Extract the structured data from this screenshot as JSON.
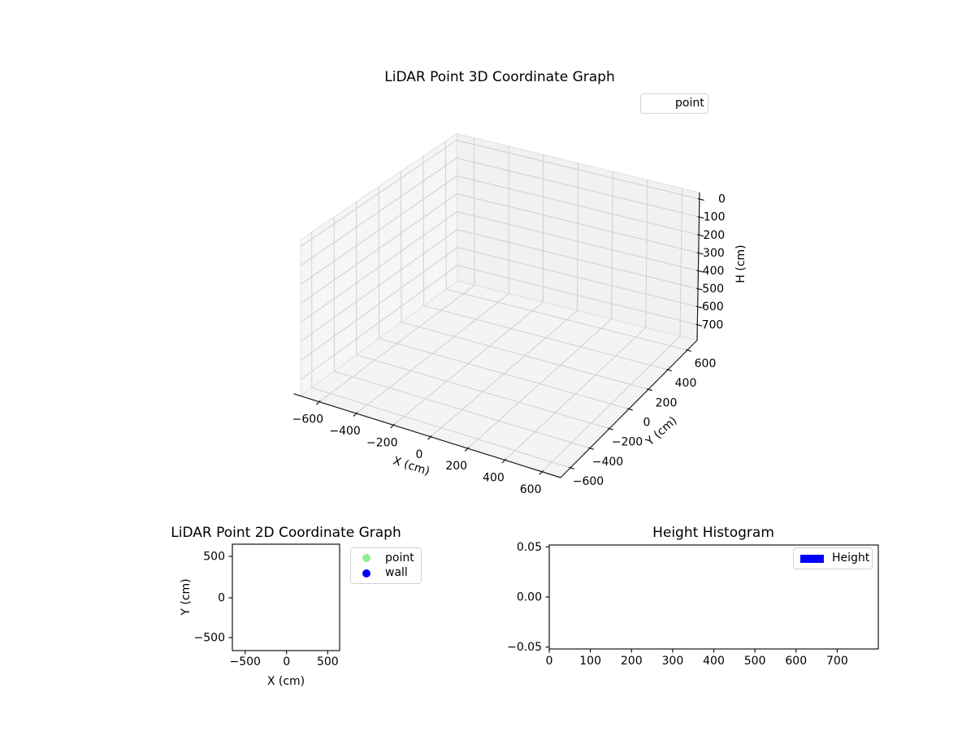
{
  "colors": {
    "point_marker": "#90ee90",
    "wall_marker": "#0000ff",
    "height_bar": "#0000ff",
    "axis_line": "#1a1a1a",
    "grid_line": "#cfcfcf",
    "pane_left": "#f6f6f6",
    "pane_right": "#f1f1f1",
    "pane_floor": "#f4f4f4",
    "pane_edge": "#dcdcdc"
  },
  "plot3d": {
    "title": "LiDAR Point 3D Coordinate Graph",
    "xlabel": "X (cm)",
    "ylabel": "Y (cm)",
    "zlabel": "H (cm)",
    "xticks": [
      -600,
      -400,
      -200,
      0,
      200,
      400,
      600
    ],
    "yticks": [
      -600,
      -400,
      -200,
      0,
      200,
      400,
      600
    ],
    "zticks": [
      0,
      100,
      200,
      300,
      400,
      500,
      600,
      700
    ],
    "xlim": [
      -700,
      700
    ],
    "ylim": [
      -700,
      700
    ],
    "z_inverted": true,
    "legend": [
      {
        "label": "point",
        "handle": "none"
      }
    ]
  },
  "plot2d": {
    "title": "LiDAR Point 2D Coordinate Graph",
    "xlabel": "X (cm)",
    "ylabel": "Y (cm)",
    "xticks": [
      -500,
      0,
      500
    ],
    "yticks": [
      500,
      0,
      -500
    ],
    "legend": [
      {
        "label": "point",
        "color": "#90ee90",
        "handle": "dot"
      },
      {
        "label": "wall",
        "color": "#0000ff",
        "handle": "dot"
      }
    ]
  },
  "hist": {
    "title": "Height Histogram",
    "xticks": [
      0,
      100,
      200,
      300,
      400,
      500,
      600,
      700
    ],
    "yticks": [
      0.05,
      0.0,
      -0.05
    ],
    "legend": [
      {
        "label": "Height",
        "color": "#0000ff",
        "handle": "rect"
      }
    ]
  },
  "chart_data": [
    {
      "type": "scatter",
      "projection": "3d",
      "title": "LiDAR Point 3D Coordinate Graph",
      "xlabel": "X (cm)",
      "ylabel": "Y (cm)",
      "zlabel": "H (cm)",
      "xlim": [
        -700,
        700
      ],
      "ylim": [
        -700,
        700
      ],
      "zlim": [
        0,
        700
      ],
      "z_axis_inverted": true,
      "xticks": [
        -600,
        -400,
        -200,
        0,
        200,
        400,
        600
      ],
      "yticks": [
        -600,
        -400,
        -200,
        0,
        200,
        400,
        600
      ],
      "zticks": [
        0,
        100,
        200,
        300,
        400,
        500,
        600,
        700
      ],
      "grid": true,
      "legend_position": "upper right",
      "series": [
        {
          "name": "point",
          "x": [],
          "y": [],
          "z": []
        }
      ]
    },
    {
      "type": "scatter",
      "title": "LiDAR Point 2D Coordinate Graph",
      "xlabel": "X (cm)",
      "ylabel": "Y (cm)",
      "xlim": [
        -660,
        650
      ],
      "ylim": [
        -660,
        650
      ],
      "xticks": [
        -500,
        0,
        500
      ],
      "yticks": [
        -500,
        0,
        500
      ],
      "grid": false,
      "legend_position": "outside upper right",
      "series": [
        {
          "name": "point",
          "color": "#90ee90",
          "x": [],
          "y": []
        },
        {
          "name": "wall",
          "color": "#0000ff",
          "x": [],
          "y": []
        }
      ]
    },
    {
      "type": "bar",
      "title": "Height Histogram",
      "xlim": [
        0,
        800
      ],
      "ylim": [
        -0.05,
        0.05
      ],
      "xticks": [
        0,
        100,
        200,
        300,
        400,
        500,
        600,
        700
      ],
      "yticks": [
        0.05,
        0.0,
        -0.05
      ],
      "grid": false,
      "legend_position": "upper right",
      "series": [
        {
          "name": "Height",
          "color": "#0000ff",
          "values": []
        }
      ]
    }
  ]
}
